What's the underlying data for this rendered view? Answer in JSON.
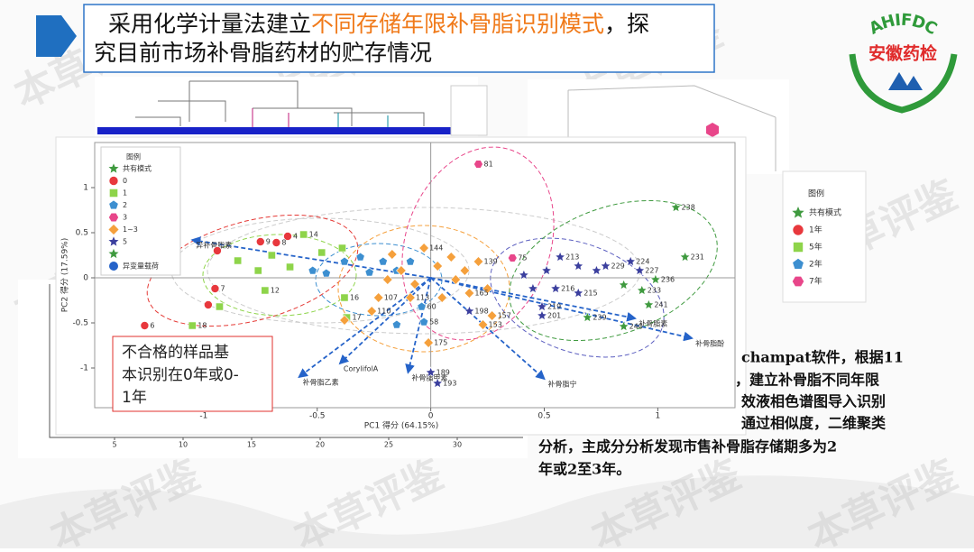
{
  "header": {
    "line1": [
      "采用化学计量法建立",
      "不同存储年限补骨脂识别模式",
      "，探"
    ],
    "line2": "究目前市场补骨脂药材的贮存情况"
  },
  "logo": {
    "top": "AHIFDC",
    "name": "安徽药检"
  },
  "watermark": "本草评鉴",
  "note": [
    "不合格的样品基",
    "本识别在0年或0-",
    "1年"
  ],
  "body": [
    "champat软件，根据11",
    "，建立补骨脂不同年限",
    "效液相色谱图导入识别",
    "通过相似度，二维聚类",
    "分析，主成分分析发现市售补骨脂存储期多为2",
    "年或2至3年。"
  ],
  "legend3d": {
    "title": "图例",
    "entries": [
      "共有模式",
      "1年",
      "5年",
      "2年",
      "7年"
    ]
  },
  "background_plot": {
    "xticks": [
      5,
      10,
      15,
      20,
      25,
      30
    ]
  },
  "chart_data": {
    "type": "scatter",
    "xlabel": "PC1 得分 (64.15%)",
    "ylabel": "PC2 得分 (17.59%)",
    "xlim": [
      -1.48,
      1.34
    ],
    "ylim": [
      -1.44,
      1.5
    ],
    "xticks": [
      -1,
      -0.5,
      0,
      0.5,
      1
    ],
    "yticks": [
      -1,
      -0.5,
      0,
      0.5,
      1
    ],
    "legend_title": "图例",
    "legend_common": "共有模式",
    "legend_loadings": "异变量载荷",
    "series": [
      {
        "name": "0",
        "color": "#e8383d",
        "marker": "circle",
        "x": [
          -1.26,
          -0.75,
          -0.68,
          -0.63,
          -0.94,
          -0.95,
          -0.98
        ],
        "y": [
          -0.53,
          0.4,
          0.39,
          0.46,
          0.3,
          -0.12,
          -0.3
        ],
        "labels": [
          "6",
          "9",
          "8",
          "4",
          null,
          "7",
          null
        ]
      },
      {
        "name": "1",
        "color": "#8ed44a",
        "marker": "square",
        "x": [
          -1.05,
          -0.93,
          -0.85,
          -0.76,
          -0.73,
          -0.7,
          -0.62,
          -0.56,
          -0.48,
          -0.39,
          -0.38,
          -0.37
        ],
        "y": [
          -0.53,
          -0.32,
          0.19,
          0.08,
          -0.14,
          0.25,
          0.12,
          0.48,
          0.28,
          0.33,
          -0.22,
          -0.44
        ],
        "labels": [
          "18",
          null,
          null,
          null,
          "12",
          null,
          null,
          "14",
          null,
          null,
          "16",
          "17"
        ]
      },
      {
        "name": "2",
        "color": "#3d8fd0",
        "marker": "pentagon",
        "x": [
          -0.52,
          -0.46,
          -0.38,
          -0.31,
          -0.27,
          -0.21,
          -0.15,
          -0.09,
          -0.04,
          -0.03,
          -0.15
        ],
        "y": [
          0.08,
          0.05,
          0.18,
          0.23,
          0.06,
          0.18,
          0.08,
          0.18,
          -0.32,
          -0.49,
          -0.52
        ],
        "labels": [
          null,
          null,
          null,
          null,
          null,
          null,
          null,
          null,
          "60",
          "58",
          null
        ]
      },
      {
        "name": "3",
        "color": "#e8468a",
        "marker": "hexagon",
        "x": [
          0.21,
          0.36
        ],
        "y": [
          1.26,
          0.22
        ],
        "labels": [
          "81",
          "75"
        ]
      },
      {
        "name": "1~3",
        "color": "#f5a03c",
        "marker": "diamond",
        "x": [
          -0.23,
          -0.26,
          -0.19,
          -0.13,
          -0.07,
          -0.03,
          0.03,
          0.09,
          0.15,
          0.21,
          0.25,
          0.27,
          0.23,
          0.05,
          0.11,
          0.17,
          -0.09,
          -0.17,
          -0.01,
          -0.38
        ],
        "y": [
          -0.22,
          -0.37,
          -0.02,
          0.08,
          -0.07,
          0.33,
          0.13,
          0.23,
          0.08,
          0.18,
          -0.12,
          -0.42,
          -0.52,
          -0.22,
          -0.02,
          -0.17,
          -0.22,
          0.26,
          -0.72,
          -0.47
        ],
        "labels": [
          "107",
          "110",
          null,
          null,
          null,
          "144",
          null,
          null,
          null,
          "139",
          null,
          "157",
          "153",
          null,
          null,
          "165",
          "113",
          null,
          "175",
          null
        ]
      },
      {
        "name": "5",
        "color": "#3b3f9e",
        "marker": "star",
        "x": [
          0.57,
          0.51,
          0.41,
          0.45,
          0.55,
          0.65,
          0.49,
          0.49,
          0.73,
          0.88,
          0.92,
          0.77,
          0.17,
          0.0,
          0.03,
          0.65
        ],
        "y": [
          0.23,
          0.08,
          0.03,
          -0.12,
          -0.12,
          -0.17,
          -0.32,
          -0.42,
          0.08,
          0.18,
          0.08,
          0.13,
          -0.37,
          -1.05,
          -1.17,
          0.13
        ],
        "labels": [
          "213",
          null,
          null,
          null,
          "216",
          "215",
          "219",
          "201",
          null,
          "224",
          "227",
          "229",
          "198",
          "189",
          "193",
          null
        ]
      },
      {
        "name": null,
        "color": "#3f9a3f",
        "marker": "star",
        "x": [
          1.08,
          1.12,
          0.99,
          0.93,
          0.96,
          0.85,
          0.69,
          0.85
        ],
        "y": [
          0.78,
          0.23,
          -0.02,
          -0.14,
          -0.3,
          -0.54,
          -0.44,
          -0.08
        ],
        "labels": [
          "238",
          "231",
          "236",
          "233",
          "241",
          "240",
          "239",
          null
        ]
      }
    ],
    "loadings": {
      "names": [
        "异补骨脂素",
        "补骨脂素",
        "补骨脂酚",
        "补骨脂宁",
        "补骨脂乙素",
        "CorylifolA",
        "补骨脂甲素"
      ],
      "x": [
        -1.05,
        0.9,
        1.15,
        0.5,
        -0.58,
        -0.4,
        -0.1
      ],
      "y": [
        0.42,
        -0.45,
        -0.67,
        -1.12,
        -1.1,
        -0.95,
        -1.05
      ]
    }
  }
}
